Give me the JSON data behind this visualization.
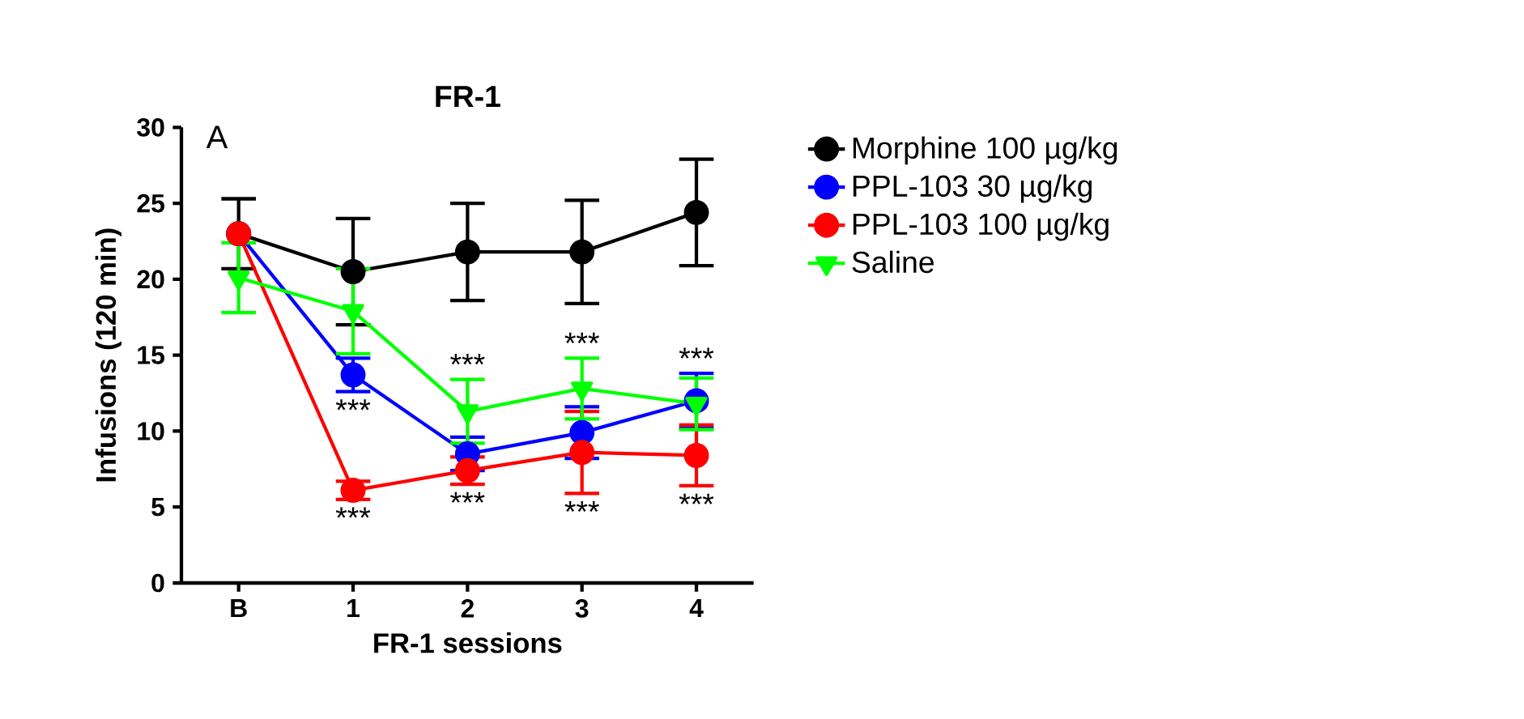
{
  "chart_data": {
    "type": "line",
    "title": "FR-1",
    "xlabel": "FR-1 sessions",
    "ylabel": "Infusions (120 min)",
    "categories": [
      "B",
      "1",
      "2",
      "3",
      "4"
    ],
    "series": [
      {
        "name": "Morphine 100 µg/kg",
        "color": "#000000",
        "marker": "circle",
        "values": [
          23.0,
          20.5,
          21.8,
          21.8,
          24.4
        ],
        "errors": [
          2.3,
          3.5,
          3.2,
          3.4,
          3.5
        ]
      },
      {
        "name": "PPL-103 30 µg/kg",
        "color": "#0000ff",
        "marker": "circle",
        "values": [
          23.0,
          13.7,
          8.5,
          9.9,
          12.0
        ],
        "errors": [
          null,
          1.1,
          1.1,
          1.7,
          1.8
        ]
      },
      {
        "name": "PPL-103 100 µg/kg",
        "color": "#ff0000",
        "marker": "circle",
        "values": [
          23.0,
          6.1,
          7.4,
          8.6,
          8.4
        ],
        "errors": [
          null,
          0.6,
          0.9,
          2.7,
          2.0
        ]
      },
      {
        "name": "Saline",
        "color": "#00ff00",
        "marker": "triangle",
        "values": [
          20.1,
          17.9,
          11.3,
          12.8,
          11.8
        ],
        "errors": [
          2.3,
          2.8,
          2.1,
          2.0,
          1.7
        ]
      }
    ],
    "ylim": [
      0,
      30
    ],
    "yticks": [
      0,
      5,
      10,
      15,
      20,
      25,
      30
    ],
    "grid": false,
    "legend": "right",
    "annotations": [
      {
        "text": "A"
      },
      {
        "text": "***",
        "x": "1",
        "y": 13.7
      },
      {
        "text": "***",
        "x": "1",
        "y": 6.1
      },
      {
        "text": "***",
        "x": "2",
        "y": 11.3
      },
      {
        "text": "***",
        "x": "2",
        "y": 7.4
      },
      {
        "text": "***",
        "x": "3",
        "y": 12.8
      },
      {
        "text": "***",
        "x": "3",
        "y": 8.6
      },
      {
        "text": "***",
        "x": "4",
        "y": 12.0
      },
      {
        "text": "***",
        "x": "4",
        "y": 8.4
      }
    ]
  }
}
